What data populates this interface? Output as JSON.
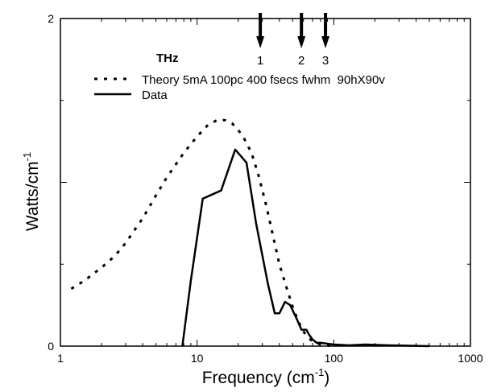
{
  "chart_data": {
    "type": "line",
    "title": "THz",
    "xlabel": "Frequency (cm",
    "xlabel_sup": "-1",
    "xlabel_close": ")",
    "ylabel": "Watts/cm",
    "ylabel_sup": "-1",
    "xscale": "log",
    "xlim": [
      1,
      1000
    ],
    "ylim": [
      0,
      2
    ],
    "x_tick_labels": [
      {
        "value": 1,
        "label": "1"
      },
      {
        "value": 10,
        "label": "10"
      },
      {
        "value": 100,
        "label": "100"
      },
      {
        "value": 1000,
        "label": "1000"
      }
    ],
    "y_tick_labels": [
      {
        "value": 0,
        "label": "0"
      },
      {
        "value": 2,
        "label": "2"
      }
    ],
    "legend_position": "top",
    "annotations": [
      {
        "label": "1",
        "x": 29
      },
      {
        "label": "2",
        "x": 58
      },
      {
        "label": "3",
        "x": 87
      }
    ],
    "series": [
      {
        "name": "Theory 5mA 100pc 400 fsecs fwhm  90hX90v",
        "style": "dotted",
        "x": [
          1.2,
          1.5,
          2,
          2.5,
          3,
          4,
          5,
          6,
          7,
          8,
          10,
          12,
          14,
          16,
          18,
          20,
          22,
          25,
          28,
          32,
          36,
          40,
          45,
          50,
          55,
          60,
          65,
          70,
          80,
          90,
          100
        ],
        "y": [
          0.35,
          0.4,
          0.48,
          0.55,
          0.63,
          0.78,
          0.92,
          1.03,
          1.11,
          1.18,
          1.28,
          1.35,
          1.38,
          1.38,
          1.36,
          1.32,
          1.27,
          1.18,
          1.05,
          0.86,
          0.67,
          0.5,
          0.36,
          0.24,
          0.15,
          0.09,
          0.05,
          0.03,
          0.01,
          0.005,
          0
        ]
      },
      {
        "name": "Data",
        "style": "solid",
        "x": [
          7.8,
          9,
          11,
          15,
          19,
          23,
          27,
          33,
          37,
          40,
          44,
          48,
          54,
          58,
          63,
          66,
          70,
          75,
          80,
          100,
          130,
          170,
          250,
          500
        ],
        "y": [
          0,
          0.4,
          0.9,
          0.95,
          1.2,
          1.12,
          0.75,
          0.38,
          0.2,
          0.2,
          0.27,
          0.25,
          0.16,
          0.1,
          0.1,
          0.07,
          0.04,
          0.02,
          0.02,
          0.01,
          0.005,
          0.01,
          0.005,
          0
        ]
      }
    ]
  }
}
